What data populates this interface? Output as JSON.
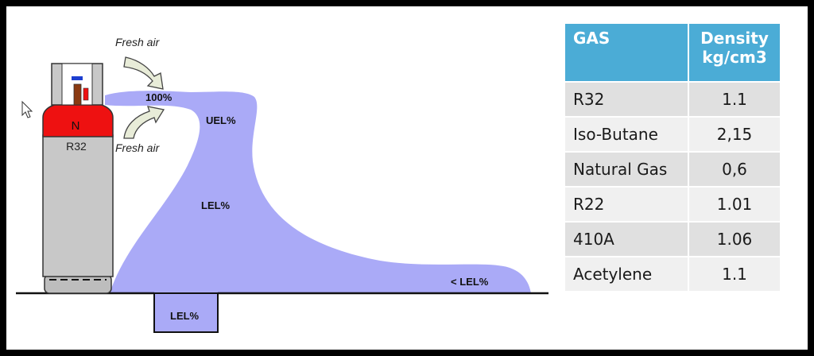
{
  "diagram": {
    "cylinder_top_label": "N",
    "cylinder_label": "R32",
    "fresh_air_top": "Fresh air",
    "fresh_air_bottom": "Fresh air",
    "conc_100": "100%",
    "uel": "UEL%",
    "lel": "LEL%",
    "lel_pit": "LEL%",
    "below_lel": "< LEL%"
  },
  "colors": {
    "gas_cloud": "#aaaaf7",
    "cylinder_top": "#ee1111",
    "cylinder_body": "#c8c8c8",
    "table_header": "#4bacd6"
  },
  "table": {
    "headers": [
      "GAS",
      "Density kg/cm3"
    ],
    "rows": [
      {
        "gas": "R32",
        "density": "1.1"
      },
      {
        "gas": "Iso-Butane",
        "density": "2,15"
      },
      {
        "gas": "Natural Gas",
        "density": "0,6"
      },
      {
        "gas": "R22",
        "density": "1.01"
      },
      {
        "gas": "410A",
        "density": "1.06"
      },
      {
        "gas": "Acetylene",
        "density": "1.1"
      }
    ]
  }
}
